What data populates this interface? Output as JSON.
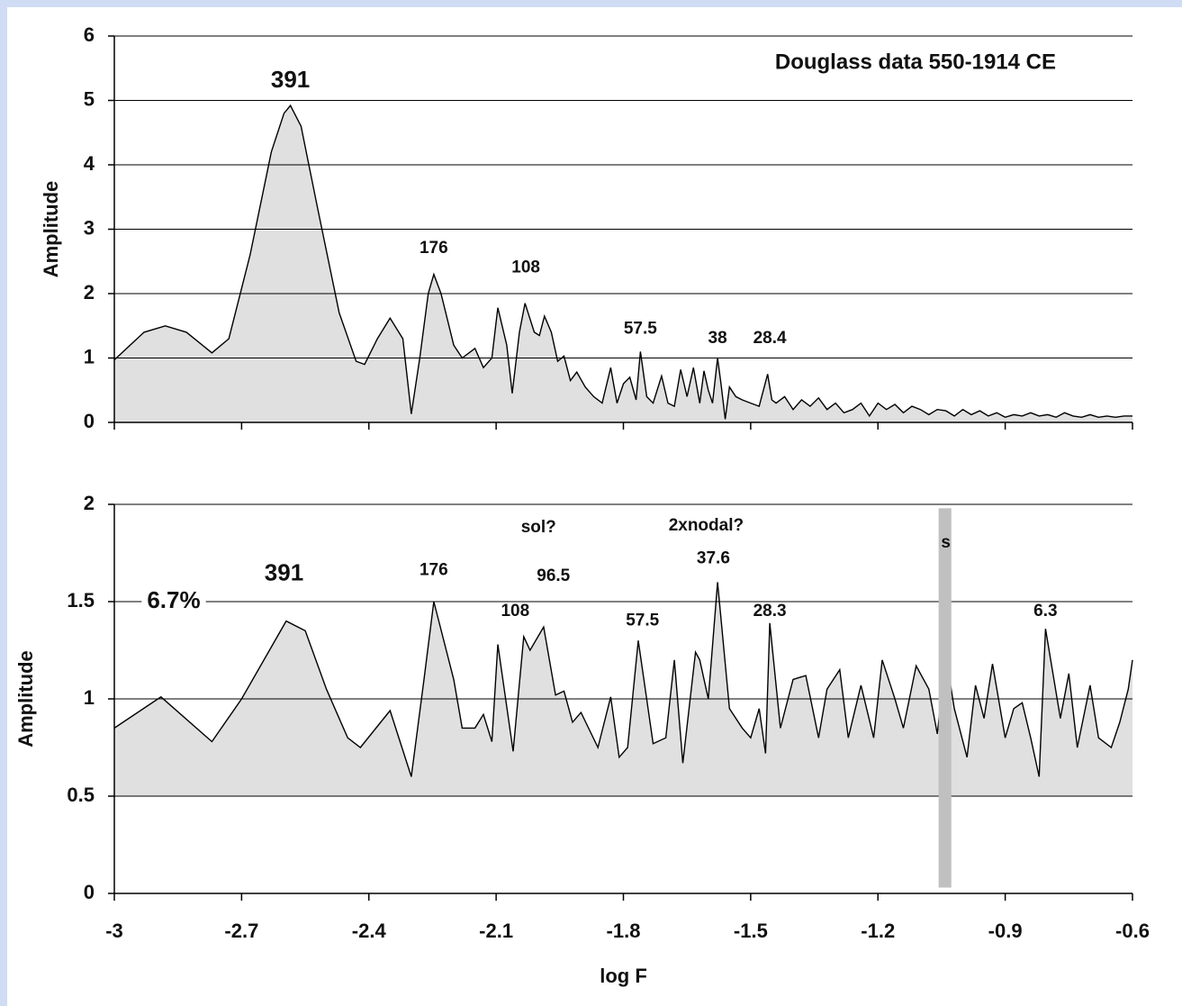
{
  "chart_data": [
    {
      "type": "area",
      "title": "Douglass data 550-1914 CE",
      "ylabel": "Amplitude",
      "xlim": [
        -3,
        -0.6
      ],
      "ylim": [
        0,
        6
      ],
      "yticks": [
        0,
        1,
        2,
        3,
        4,
        5,
        6
      ],
      "grid": true,
      "color": "#e0e0e0",
      "line_color": "#000000",
      "fill_to": 0,
      "x": [
        -3,
        -2.93,
        -2.88,
        -2.83,
        -2.77,
        -2.73,
        -2.68,
        -2.63,
        -2.6,
        -2.585,
        -2.56,
        -2.52,
        -2.47,
        -2.43,
        -2.41,
        -2.38,
        -2.35,
        -2.32,
        -2.3,
        -2.28,
        -2.26,
        -2.247,
        -2.23,
        -2.2,
        -2.18,
        -2.15,
        -2.13,
        -2.11,
        -2.096,
        -2.075,
        -2.062,
        -2.045,
        -2.032,
        -2.01,
        -1.998,
        -1.986,
        -1.97,
        -1.955,
        -1.94,
        -1.925,
        -1.91,
        -1.89,
        -1.87,
        -1.85,
        -1.83,
        -1.815,
        -1.8,
        -1.785,
        -1.77,
        -1.76,
        -1.745,
        -1.73,
        -1.71,
        -1.695,
        -1.68,
        -1.665,
        -1.65,
        -1.635,
        -1.62,
        -1.61,
        -1.6,
        -1.59,
        -1.578,
        -1.57,
        -1.56,
        -1.55,
        -1.535,
        -1.52,
        -1.5,
        -1.48,
        -1.46,
        -1.45,
        -1.44,
        -1.42,
        -1.4,
        -1.38,
        -1.36,
        -1.34,
        -1.32,
        -1.3,
        -1.28,
        -1.26,
        -1.24,
        -1.22,
        -1.2,
        -1.18,
        -1.16,
        -1.14,
        -1.12,
        -1.1,
        -1.08,
        -1.06,
        -1.04,
        -1.02,
        -1.0,
        -0.98,
        -0.96,
        -0.94,
        -0.92,
        -0.9,
        -0.88,
        -0.86,
        -0.84,
        -0.82,
        -0.8,
        -0.78,
        -0.76,
        -0.74,
        -0.72,
        -0.7,
        -0.68,
        -0.66,
        -0.64,
        -0.62,
        -0.6
      ],
      "values": [
        0.97,
        1.4,
        1.5,
        1.4,
        1.08,
        1.3,
        2.6,
        4.2,
        4.8,
        4.92,
        4.6,
        3.3,
        1.7,
        0.95,
        0.9,
        1.3,
        1.62,
        1.3,
        0.13,
        1.0,
        2.0,
        2.3,
        2.0,
        1.2,
        1.0,
        1.15,
        0.85,
        1.0,
        1.78,
        1.2,
        0.45,
        1.4,
        1.85,
        1.4,
        1.35,
        1.65,
        1.4,
        0.95,
        1.03,
        0.65,
        0.78,
        0.55,
        0.4,
        0.3,
        0.85,
        0.3,
        0.6,
        0.7,
        0.35,
        1.1,
        0.4,
        0.3,
        0.72,
        0.3,
        0.25,
        0.82,
        0.4,
        0.85,
        0.3,
        0.8,
        0.5,
        0.3,
        1.0,
        0.6,
        0.05,
        0.55,
        0.4,
        0.35,
        0.3,
        0.25,
        0.75,
        0.35,
        0.3,
        0.4,
        0.2,
        0.35,
        0.25,
        0.38,
        0.2,
        0.3,
        0.15,
        0.2,
        0.3,
        0.1,
        0.3,
        0.2,
        0.28,
        0.15,
        0.25,
        0.2,
        0.12,
        0.2,
        0.18,
        0.1,
        0.2,
        0.12,
        0.18,
        0.1,
        0.15,
        0.08,
        0.12,
        0.1,
        0.15,
        0.1,
        0.12,
        0.08,
        0.15,
        0.1,
        0.08,
        0.12,
        0.08,
        0.1,
        0.08,
        0.1,
        0.1
      ],
      "annotations": [
        {
          "text": "391",
          "x": -2.585,
          "y": 5.3
        },
        {
          "text": "176",
          "x": -2.247,
          "y": 2.7
        },
        {
          "text": "108",
          "x": -2.03,
          "y": 2.4
        },
        {
          "text": "57.5",
          "x": -1.76,
          "y": 1.45
        },
        {
          "text": "38",
          "x": -1.578,
          "y": 1.3
        },
        {
          "text": "28.4",
          "x": -1.455,
          "y": 1.3
        }
      ]
    },
    {
      "type": "area",
      "xlabel": "log F",
      "ylabel": "Amplitude",
      "xlim": [
        -3,
        -0.6
      ],
      "ylim": [
        0,
        2
      ],
      "xticks": [
        -3,
        -2.7,
        -2.4,
        -2.1,
        -1.8,
        -1.5,
        -1.2,
        -0.9,
        -0.6
      ],
      "yticks": [
        0,
        0.5,
        1,
        1.5,
        2
      ],
      "grid": true,
      "color": "#e0e0e0",
      "line_color": "#000000",
      "fill_to": 0.5,
      "x": [
        -3,
        -2.89,
        -2.77,
        -2.7,
        -2.595,
        -2.55,
        -2.5,
        -2.45,
        -2.42,
        -2.35,
        -2.3,
        -2.27,
        -2.247,
        -2.2,
        -2.18,
        -2.15,
        -2.13,
        -2.11,
        -2.096,
        -2.06,
        -2.035,
        -2.02,
        -1.988,
        -1.96,
        -1.94,
        -1.92,
        -1.9,
        -1.86,
        -1.83,
        -1.81,
        -1.79,
        -1.765,
        -1.73,
        -1.7,
        -1.68,
        -1.66,
        -1.63,
        -1.62,
        -1.6,
        -1.578,
        -1.55,
        -1.52,
        -1.5,
        -1.48,
        -1.465,
        -1.455,
        -1.43,
        -1.4,
        -1.37,
        -1.34,
        -1.32,
        -1.29,
        -1.27,
        -1.24,
        -1.21,
        -1.19,
        -1.16,
        -1.14,
        -1.11,
        -1.08,
        -1.06,
        -1.04,
        -1.02,
        -0.99,
        -0.97,
        -0.95,
        -0.93,
        -0.9,
        -0.88,
        -0.86,
        -0.84,
        -0.82,
        -0.805,
        -0.77,
        -0.75,
        -0.73,
        -0.7,
        -0.68,
        -0.65,
        -0.63,
        -0.61,
        -0.6
      ],
      "values": [
        0.85,
        1.01,
        0.78,
        1.0,
        1.4,
        1.35,
        1.05,
        0.8,
        0.75,
        0.94,
        0.6,
        1.1,
        1.5,
        1.1,
        0.85,
        0.85,
        0.92,
        0.78,
        1.28,
        0.73,
        1.32,
        1.25,
        1.37,
        1.02,
        1.04,
        0.88,
        0.93,
        0.75,
        1.01,
        0.7,
        0.75,
        1.3,
        0.77,
        0.8,
        1.2,
        0.67,
        1.24,
        1.2,
        1.0,
        1.6,
        0.95,
        0.85,
        0.8,
        0.95,
        0.72,
        1.39,
        0.85,
        1.1,
        1.12,
        0.8,
        1.05,
        1.15,
        0.8,
        1.07,
        0.8,
        1.2,
        1.0,
        0.85,
        1.17,
        1.05,
        0.82,
        1.22,
        0.95,
        0.7,
        1.07,
        0.9,
        1.18,
        0.8,
        0.95,
        0.98,
        0.8,
        0.6,
        1.36,
        0.9,
        1.13,
        0.75,
        1.07,
        0.8,
        0.75,
        0.88,
        1.05,
        1.2
      ],
      "band": {
        "xlim": [
          -1.057,
          -1.027
        ],
        "ylim": [
          0.03,
          1.98
        ],
        "color": "#c0c0c0"
      },
      "annotations": [
        {
          "text": "391",
          "x": -2.6,
          "y": 1.64
        },
        {
          "text": "6.7%",
          "x": -2.86,
          "y": 1.5
        },
        {
          "text": "176",
          "x": -2.247,
          "y": 1.66
        },
        {
          "text": "sol?",
          "x": -2.0,
          "y": 1.88
        },
        {
          "text": "96.5",
          "x": -1.965,
          "y": 1.63
        },
        {
          "text": "108",
          "x": -2.055,
          "y": 1.45
        },
        {
          "text": "2xnodal?",
          "x": -1.605,
          "y": 1.89
        },
        {
          "text": "37.6",
          "x": -1.588,
          "y": 1.72
        },
        {
          "text": "57.5",
          "x": -1.755,
          "y": 1.4
        },
        {
          "text": "28.3",
          "x": -1.455,
          "y": 1.45
        },
        {
          "text": "6.3",
          "x": -0.805,
          "y": 1.45
        },
        {
          "text": "s",
          "x": -1.04,
          "y": 1.8
        }
      ]
    }
  ]
}
